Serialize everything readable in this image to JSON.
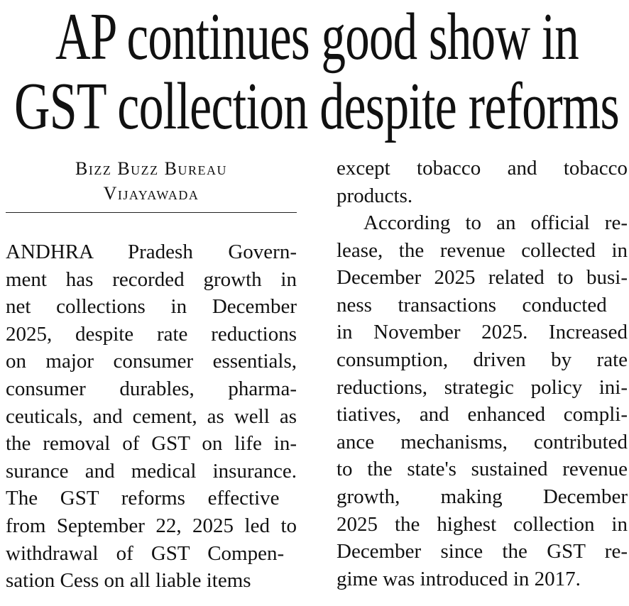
{
  "headline": {
    "lines": [
      "AP continues good show in",
      "GST collection despite reforms"
    ]
  },
  "byline": {
    "author": "Bizz Buzz Bureau",
    "location": "Vijayawada"
  },
  "body": {
    "left_col": {
      "lines": [
        "ANDHRA Pradesh Govern-",
        "ment has recorded growth in",
        "net collections in December",
        "2025, despite rate reductions",
        "on major consumer essentials,",
        "consumer durables, pharma-",
        "ceuticals, and cement, as well as",
        "the removal of GST on life in-",
        "surance and medical insurance.",
        "The GST reforms  effective",
        "from September 22, 2025 led to",
        "withdrawal of  GST Compen-",
        "sation Cess on all liable items"
      ]
    },
    "right_col": {
      "para1_lines": [
        "except tobacco and tobacco",
        "products."
      ],
      "para2_lines": [
        "According to an official re-",
        "lease, the revenue collected in",
        "December 2025 related to busi-",
        "ness  transactions conducted",
        "in November 2025. Increased",
        "consumption, driven by rate",
        "reductions, strategic policy ini-",
        "tiatives, and enhanced compli-",
        "ance mechanisms, contributed",
        "to the state's sustained revenue",
        "growth, making December",
        "2025 the highest collection in",
        "December since the GST re-",
        "gime was introduced in 2017."
      ]
    }
  }
}
